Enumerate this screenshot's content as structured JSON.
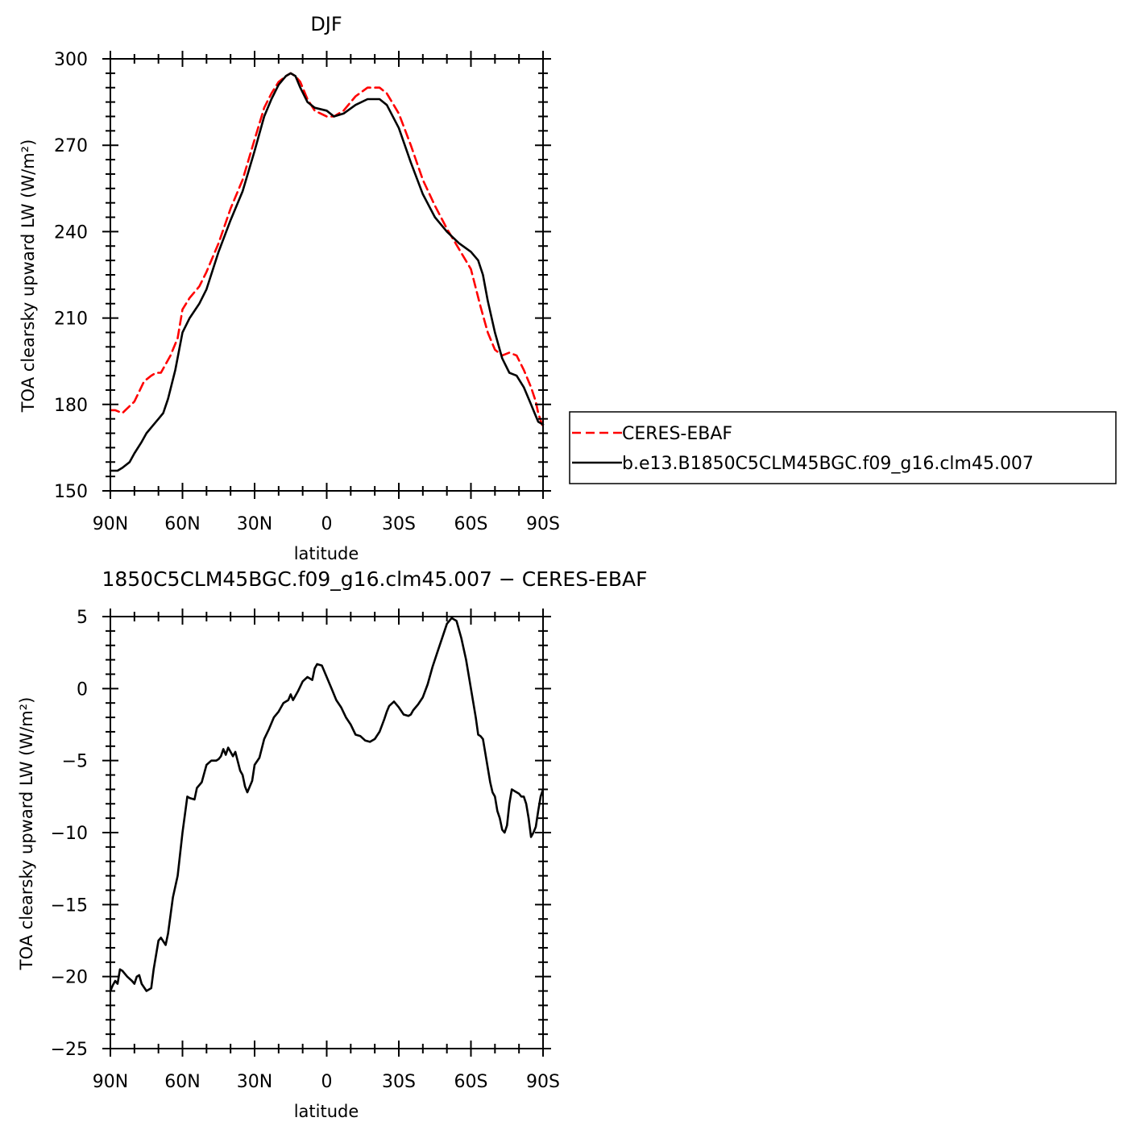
{
  "chart_data": [
    {
      "type": "line",
      "title": "DJF",
      "xlabel": "latitude",
      "ylabel": "TOA clearsky upward LW (W/m²)",
      "xlim": [
        90,
        -90
      ],
      "ylim": [
        150,
        300
      ],
      "xticks": [
        {
          "value": 90,
          "label": "90N"
        },
        {
          "value": 60,
          "label": "60N"
        },
        {
          "value": 30,
          "label": "30N"
        },
        {
          "value": 0,
          "label": "0"
        },
        {
          "value": -30,
          "label": "30S"
        },
        {
          "value": -60,
          "label": "60S"
        },
        {
          "value": -90,
          "label": "90S"
        }
      ],
      "yticks": [
        {
          "value": 150,
          "label": "150"
        },
        {
          "value": 180,
          "label": "180"
        },
        {
          "value": 210,
          "label": "210"
        },
        {
          "value": 240,
          "label": "240"
        },
        {
          "value": 270,
          "label": "270"
        },
        {
          "value": 300,
          "label": "300"
        }
      ],
      "legend_position": "right",
      "series": [
        {
          "name": "CERES-EBAF",
          "color": "#ff0000",
          "dash": "dashed",
          "x": [
            90,
            88,
            85,
            80,
            76,
            73,
            71,
            69,
            65,
            62,
            60,
            57,
            53,
            50,
            45,
            40,
            35,
            30,
            26,
            23,
            20,
            17,
            15,
            13,
            11,
            8,
            5,
            0,
            -3,
            -7,
            -12,
            -17,
            -22,
            -25,
            -30,
            -35,
            -40,
            -45,
            -50,
            -55,
            -60,
            -64,
            -67,
            -70,
            -73,
            -76,
            -79,
            -82,
            -85,
            -87,
            -88,
            -90
          ],
          "y": [
            178,
            178,
            177,
            181,
            188,
            190,
            191,
            191,
            197,
            203,
            213,
            217,
            221,
            226,
            236,
            248,
            258,
            272,
            283,
            288,
            292,
            294,
            295,
            294,
            292,
            286,
            282,
            280,
            280,
            282,
            287,
            290,
            290,
            288,
            281,
            270,
            258,
            249,
            241,
            234,
            227,
            214,
            205,
            199,
            197,
            198,
            197,
            192,
            186,
            181,
            177,
            172
          ]
        },
        {
          "name": "b.e13.B1850C5CLM45BGC.f09_g16.clm45.007",
          "color": "#000000",
          "dash": "solid",
          "x": [
            90,
            87,
            85,
            82,
            80,
            77,
            75,
            72,
            70,
            68,
            66,
            63,
            60,
            57,
            53,
            50,
            45,
            40,
            35,
            30,
            26,
            23,
            20,
            17,
            15,
            13,
            11,
            8,
            5,
            0,
            -3,
            -7,
            -12,
            -17,
            -22,
            -25,
            -30,
            -35,
            -40,
            -45,
            -50,
            -55,
            -60,
            -63,
            -65,
            -67,
            -70,
            -73,
            -76,
            -79,
            -82,
            -85,
            -87,
            -88,
            -90
          ],
          "y": [
            157,
            157,
            158,
            160,
            163,
            167,
            170,
            173,
            175,
            177,
            182,
            192,
            205,
            210,
            215,
            220,
            233,
            244,
            254,
            268,
            280,
            286,
            291,
            294,
            295,
            294,
            290,
            285,
            283,
            282,
            280,
            281,
            284,
            286,
            286,
            284,
            276,
            264,
            253,
            245,
            240,
            236,
            233,
            230,
            225,
            216,
            205,
            196,
            191,
            190,
            186,
            180,
            176,
            174,
            173
          ]
        }
      ]
    },
    {
      "type": "line",
      "title": "1850C5CLM45BGC.f09_g16.clm45.007 − CERES-EBAF",
      "xlabel": "latitude",
      "ylabel": "TOA clearsky upward LW (W/m²)",
      "xlim": [
        90,
        -90
      ],
      "ylim": [
        -25,
        5
      ],
      "xticks": [
        {
          "value": 90,
          "label": "90N"
        },
        {
          "value": 60,
          "label": "60N"
        },
        {
          "value": 30,
          "label": "30N"
        },
        {
          "value": 0,
          "label": "0"
        },
        {
          "value": -30,
          "label": "30S"
        },
        {
          "value": -60,
          "label": "60S"
        },
        {
          "value": -90,
          "label": "90S"
        }
      ],
      "yticks": [
        {
          "value": -25,
          "label": "−25"
        },
        {
          "value": -20,
          "label": "−20"
        },
        {
          "value": -15,
          "label": "−15"
        },
        {
          "value": -10,
          "label": "−10"
        },
        {
          "value": -5,
          "label": "−5"
        },
        {
          "value": 0,
          "label": "0"
        },
        {
          "value": 5,
          "label": "5"
        }
      ],
      "series": [
        {
          "color": "#000000",
          "dash": "solid",
          "x": [
            90,
            89,
            88,
            87,
            86,
            85,
            83,
            81,
            80,
            79,
            78,
            77,
            75,
            73,
            72,
            71,
            70,
            69,
            67,
            66,
            64,
            62,
            61,
            60,
            58,
            57,
            55,
            54,
            52,
            50,
            48,
            47,
            46,
            45,
            44,
            43,
            42,
            41,
            40,
            39,
            38,
            36,
            35,
            34,
            33,
            31,
            30,
            28,
            26,
            24,
            22,
            20,
            18,
            16,
            15,
            14,
            12,
            10,
            8,
            6,
            5,
            4,
            2,
            0,
            -2,
            -4,
            -6,
            -8,
            -10,
            -12,
            -14,
            -16,
            -18,
            -20,
            -22,
            -24,
            -25,
            -26,
            -28,
            -30,
            -32,
            -34,
            -35,
            -36,
            -38,
            -40,
            -42,
            -44,
            -46,
            -48,
            -50,
            -52,
            -54,
            -56,
            -58,
            -60,
            -61,
            -62,
            -63,
            -64,
            -65,
            -66,
            -67,
            -68,
            -69,
            -70,
            -71,
            -72,
            -73,
            -74,
            -75,
            -76,
            -77,
            -78,
            -79,
            -80,
            -81,
            -82,
            -83,
            -84,
            -85,
            -86,
            -87,
            -88,
            -89,
            -90
          ],
          "y": [
            -21,
            -20.6,
            -20.3,
            -20.5,
            -19.5,
            -19.6,
            -20,
            -20.3,
            -20.5,
            -20,
            -19.9,
            -20.5,
            -21,
            -20.8,
            -19.5,
            -18.5,
            -17.5,
            -17.3,
            -17.8,
            -17,
            -14.5,
            -13,
            -11.5,
            -10,
            -7.5,
            -7.6,
            -7.7,
            -6.9,
            -6.5,
            -5.3,
            -5,
            -5,
            -5,
            -4.9,
            -4.7,
            -4.2,
            -4.6,
            -4.1,
            -4.4,
            -4.7,
            -4.4,
            -5.7,
            -6,
            -6.8,
            -7.2,
            -6.4,
            -5.3,
            -4.8,
            -3.5,
            -2.8,
            -2,
            -1.6,
            -1,
            -0.8,
            -0.4,
            -0.8,
            -0.2,
            0.5,
            0.8,
            0.6,
            1.4,
            1.7,
            1.6,
            0.8,
            0,
            -0.8,
            -1.3,
            -2,
            -2.5,
            -3.2,
            -3.3,
            -3.6,
            -3.7,
            -3.5,
            -3,
            -2.1,
            -1.6,
            -1.2,
            -0.9,
            -1.3,
            -1.8,
            -1.9,
            -1.8,
            -1.5,
            -1.1,
            -0.6,
            0.3,
            1.5,
            2.5,
            3.5,
            4.5,
            4.9,
            4.7,
            3.5,
            2,
            0,
            -1,
            -2,
            -3.2,
            -3.3,
            -3.5,
            -4.5,
            -5.5,
            -6.5,
            -7.2,
            -7.5,
            -8.5,
            -9,
            -9.8,
            -10,
            -9.5,
            -8,
            -7,
            -7.1,
            -7.2,
            -7.3,
            -7.5,
            -7.5,
            -8,
            -9,
            -10.3,
            -10,
            -9.6,
            -8.5,
            -7.5,
            -7
          ]
        }
      ]
    }
  ]
}
